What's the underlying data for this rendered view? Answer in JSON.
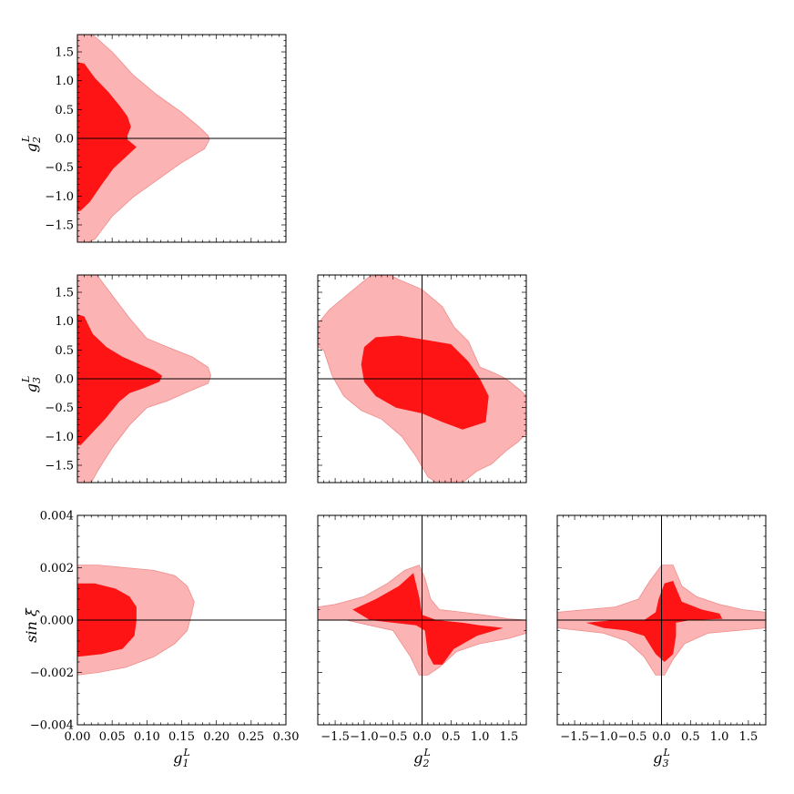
{
  "chart_data": [
    {
      "type": "contour",
      "id": "g1-g2",
      "xlabel": "",
      "ylabel": "g_2^L",
      "xlim": [
        0.0,
        0.3
      ],
      "ylim": [
        -1.8,
        1.8
      ],
      "xticks": [
        0.0,
        0.05,
        0.1,
        0.15,
        0.2,
        0.25,
        0.3
      ],
      "yticks": [
        -1.5,
        -1.0,
        -0.5,
        0.0,
        0.5,
        1.0,
        1.5
      ],
      "xtick_labels": [],
      "ytick_labels": [
        "−1.5",
        "−1.0",
        "−0.5",
        "0.0",
        "0.5",
        "1.0",
        "1.5"
      ],
      "reference_lines": {
        "x": null,
        "y": 0
      },
      "outer_region": [
        [
          0,
          1.8
        ],
        [
          0.022,
          1.8
        ],
        [
          0.05,
          1.5
        ],
        [
          0.08,
          1.1
        ],
        [
          0.115,
          0.75
        ],
        [
          0.15,
          0.45
        ],
        [
          0.175,
          0.2
        ],
        [
          0.188,
          0.05
        ],
        [
          0.19,
          -0.02
        ],
        [
          0.183,
          -0.18
        ],
        [
          0.15,
          -0.42
        ],
        [
          0.115,
          -0.72
        ],
        [
          0.08,
          -1.02
        ],
        [
          0.05,
          -1.35
        ],
        [
          0.025,
          -1.75
        ],
        [
          0.015,
          -1.8
        ],
        [
          0,
          -1.8
        ]
      ],
      "inner_region": [
        [
          0,
          1.32
        ],
        [
          0.01,
          1.3
        ],
        [
          0.025,
          1.05
        ],
        [
          0.045,
          0.8
        ],
        [
          0.062,
          0.55
        ],
        [
          0.072,
          0.38
        ],
        [
          0.077,
          0.2
        ],
        [
          0.072,
          0.05
        ],
        [
          0.072,
          -0.02
        ],
        [
          0.085,
          -0.15
        ],
        [
          0.07,
          -0.32
        ],
        [
          0.052,
          -0.52
        ],
        [
          0.035,
          -0.8
        ],
        [
          0.018,
          -1.1
        ],
        [
          0.005,
          -1.25
        ],
        [
          0,
          -1.27
        ]
      ]
    },
    {
      "type": "contour",
      "id": "g1-g3",
      "xlabel": "",
      "ylabel": "g_3^L",
      "xlim": [
        0.0,
        0.3
      ],
      "ylim": [
        -1.8,
        1.8
      ],
      "xticks": [
        0.0,
        0.05,
        0.1,
        0.15,
        0.2,
        0.25,
        0.3
      ],
      "yticks": [
        -1.5,
        -1.0,
        -0.5,
        0.0,
        0.5,
        1.0,
        1.5
      ],
      "xtick_labels": [],
      "ytick_labels": [
        "−1.5",
        "−1.0",
        "−0.5",
        "0.0",
        "0.5",
        "1.0",
        "1.5"
      ],
      "reference_lines": {
        "x": null,
        "y": 0
      },
      "outer_region": [
        [
          0,
          1.8
        ],
        [
          0.028,
          1.8
        ],
        [
          0.05,
          1.45
        ],
        [
          0.075,
          1.05
        ],
        [
          0.1,
          0.7
        ],
        [
          0.13,
          0.55
        ],
        [
          0.165,
          0.38
        ],
        [
          0.188,
          0.2
        ],
        [
          0.192,
          0.05
        ],
        [
          0.188,
          -0.08
        ],
        [
          0.16,
          -0.22
        ],
        [
          0.13,
          -0.38
        ],
        [
          0.1,
          -0.5
        ],
        [
          0.075,
          -0.8
        ],
        [
          0.05,
          -1.2
        ],
        [
          0.03,
          -1.58
        ],
        [
          0.02,
          -1.8
        ],
        [
          0,
          -1.8
        ]
      ],
      "inner_region": [
        [
          0,
          1.12
        ],
        [
          0.01,
          1.08
        ],
        [
          0.022,
          0.78
        ],
        [
          0.042,
          0.55
        ],
        [
          0.065,
          0.38
        ],
        [
          0.09,
          0.25
        ],
        [
          0.11,
          0.15
        ],
        [
          0.122,
          0.05
        ],
        [
          0.118,
          -0.05
        ],
        [
          0.098,
          -0.15
        ],
        [
          0.075,
          -0.25
        ],
        [
          0.06,
          -0.4
        ],
        [
          0.04,
          -0.7
        ],
        [
          0.018,
          -0.98
        ],
        [
          0.005,
          -1.15
        ],
        [
          0,
          -1.15
        ]
      ]
    },
    {
      "type": "contour",
      "id": "g2-g3",
      "xlabel": "",
      "ylabel": "",
      "xlim": [
        -1.8,
        1.8
      ],
      "ylim": [
        -1.8,
        1.8
      ],
      "xticks": [
        -1.5,
        -1.0,
        -0.5,
        0.0,
        0.5,
        1.0,
        1.5
      ],
      "yticks": [
        -1.5,
        -1.0,
        -0.5,
        0.0,
        0.5,
        1.0,
        1.5
      ],
      "xtick_labels": [],
      "ytick_labels": [],
      "reference_lines": {
        "x": 0,
        "y": 0
      },
      "outer_region": [
        [
          -1.8,
          0.95
        ],
        [
          -1.8,
          0.55
        ],
        [
          -1.7,
          0.5
        ],
        [
          -1.55,
          0.05
        ],
        [
          -1.35,
          -0.3
        ],
        [
          -1.05,
          -0.55
        ],
        [
          -0.7,
          -0.7
        ],
        [
          -0.35,
          -1.0
        ],
        [
          -0.1,
          -1.35
        ],
        [
          0.1,
          -1.7
        ],
        [
          0.25,
          -1.8
        ],
        [
          0.7,
          -1.8
        ],
        [
          0.95,
          -1.6
        ],
        [
          1.2,
          -1.48
        ],
        [
          1.45,
          -1.25
        ],
        [
          1.65,
          -1.1
        ],
        [
          1.8,
          -0.95
        ],
        [
          1.8,
          -0.3
        ],
        [
          1.7,
          -0.2
        ],
        [
          1.45,
          0.0
        ],
        [
          1.25,
          0.1
        ],
        [
          1.0,
          0.2
        ],
        [
          0.8,
          0.65
        ],
        [
          0.55,
          0.9
        ],
        [
          0.35,
          1.25
        ],
        [
          0.0,
          1.55
        ],
        [
          -0.4,
          1.72
        ],
        [
          -0.55,
          1.8
        ],
        [
          -0.9,
          1.78
        ],
        [
          -1.3,
          1.45
        ],
        [
          -1.6,
          1.2
        ]
      ],
      "inner_region": [
        [
          -1.0,
          0.55
        ],
        [
          -0.8,
          0.72
        ],
        [
          -0.4,
          0.75
        ],
        [
          0.2,
          0.65
        ],
        [
          0.5,
          0.6
        ],
        [
          0.8,
          0.3
        ],
        [
          1.0,
          0.0
        ],
        [
          1.15,
          -0.3
        ],
        [
          1.1,
          -0.75
        ],
        [
          0.7,
          -0.88
        ],
        [
          0.35,
          -0.75
        ],
        [
          0.0,
          -0.6
        ],
        [
          -0.45,
          -0.5
        ],
        [
          -0.8,
          -0.3
        ],
        [
          -1.0,
          -0.05
        ],
        [
          -1.05,
          0.25
        ]
      ]
    },
    {
      "type": "contour",
      "id": "g1-sinxi",
      "xlabel": "g_1^L",
      "ylabel": "sin ξ",
      "xlim": [
        0.0,
        0.3
      ],
      "ylim": [
        -0.004,
        0.004
      ],
      "xticks": [
        0.0,
        0.05,
        0.1,
        0.15,
        0.2,
        0.25,
        0.3
      ],
      "yticks": [
        -0.004,
        -0.002,
        0.0,
        0.002,
        0.004
      ],
      "xtick_labels": [
        "0.00",
        "0.05",
        "0.10",
        "0.15",
        "0.20",
        "0.25",
        "0.30"
      ],
      "ytick_labels": [
        "−0.004",
        "−0.002",
        "0.000",
        "0.002",
        "0.004"
      ],
      "reference_lines": {
        "x": null,
        "y": 0
      },
      "outer_region": [
        [
          0,
          0.0021
        ],
        [
          0.03,
          0.0021
        ],
        [
          0.07,
          0.002
        ],
        [
          0.11,
          0.0019
        ],
        [
          0.14,
          0.0017
        ],
        [
          0.158,
          0.0013
        ],
        [
          0.168,
          0.0007
        ],
        [
          0.164,
          0.0002
        ],
        [
          0.158,
          -0.0004
        ],
        [
          0.14,
          -0.0009
        ],
        [
          0.11,
          -0.0014
        ],
        [
          0.07,
          -0.0018
        ],
        [
          0.03,
          -0.002
        ],
        [
          0,
          -0.0021
        ]
      ],
      "inner_region": [
        [
          0,
          0.0014
        ],
        [
          0.025,
          0.0014
        ],
        [
          0.055,
          0.0012
        ],
        [
          0.075,
          0.0009
        ],
        [
          0.085,
          0.0005
        ],
        [
          0.085,
          0.0
        ],
        [
          0.082,
          -0.0006
        ],
        [
          0.065,
          -0.0011
        ],
        [
          0.035,
          -0.0013
        ],
        [
          0,
          -0.0014
        ]
      ]
    },
    {
      "type": "contour",
      "id": "g2-sinxi",
      "xlabel": "g_2^L",
      "ylabel": "",
      "xlim": [
        -1.8,
        1.8
      ],
      "ylim": [
        -0.004,
        0.004
      ],
      "xticks": [
        -1.5,
        -1.0,
        -0.5,
        0.0,
        0.5,
        1.0,
        1.5
      ],
      "yticks": [
        -0.004,
        -0.002,
        0.0,
        0.002,
        0.004
      ],
      "xtick_labels": [
        "−1.5",
        "−1.0",
        "−0.5",
        "0.0",
        "0.5",
        "1.0",
        "1.5"
      ],
      "ytick_labels": [],
      "reference_lines": {
        "x": 0,
        "y": 0
      },
      "outer_region": [
        [
          -1.8,
          0.0005
        ],
        [
          -1.5,
          0.0006
        ],
        [
          -1.0,
          0.0009
        ],
        [
          -0.6,
          0.0014
        ],
        [
          -0.3,
          0.0019
        ],
        [
          -0.05,
          0.0021
        ],
        [
          0.05,
          0.0016
        ],
        [
          0.15,
          0.0008
        ],
        [
          0.3,
          0.0004
        ],
        [
          0.7,
          0.0003
        ],
        [
          1.2,
          0.00015
        ],
        [
          1.5,
          5e-05
        ],
        [
          1.8,
          0.0
        ],
        [
          1.8,
          -0.0005
        ],
        [
          1.5,
          -0.0007
        ],
        [
          1.0,
          -0.0009
        ],
        [
          0.6,
          -0.0012
        ],
        [
          0.3,
          -0.0018
        ],
        [
          0.1,
          -0.0021
        ],
        [
          -0.05,
          -0.0021
        ],
        [
          -0.2,
          -0.0014
        ],
        [
          -0.5,
          -0.0004
        ],
        [
          -0.9,
          -0.0002
        ],
        [
          -1.3,
          0.0
        ],
        [
          -1.8,
          0.0
        ]
      ],
      "inner_region": [
        [
          -1.2,
          0.0004
        ],
        [
          -0.8,
          0.0008
        ],
        [
          -0.4,
          0.0013
        ],
        [
          -0.15,
          0.0018
        ],
        [
          -0.05,
          0.0009
        ],
        [
          0.0,
          0.0002
        ],
        [
          0.25,
          0.0
        ],
        [
          0.7,
          -0.0001
        ],
        [
          1.0,
          -0.0002
        ],
        [
          1.4,
          -0.0003
        ],
        [
          0.95,
          -0.0006
        ],
        [
          0.55,
          -0.0011
        ],
        [
          0.35,
          -0.0017
        ],
        [
          0.2,
          -0.0017
        ],
        [
          0.1,
          -0.0013
        ],
        [
          0.05,
          -0.0004
        ],
        [
          -0.1,
          -0.0002
        ],
        [
          -0.5,
          -0.0001
        ],
        [
          -0.9,
          0.0
        ]
      ]
    },
    {
      "type": "contour",
      "id": "g3-sinxi",
      "xlabel": "g_3^L",
      "ylabel": "",
      "xlim": [
        -1.8,
        1.8
      ],
      "ylim": [
        -0.004,
        0.004
      ],
      "xticks": [
        -1.5,
        -1.0,
        -0.5,
        0.0,
        0.5,
        1.0,
        1.5
      ],
      "yticks": [
        -0.004,
        -0.002,
        0.0,
        0.002,
        0.004
      ],
      "xtick_labels": [
        "−1.5",
        "−1.0",
        "−0.5",
        "0.0",
        "0.5",
        "1.0",
        "1.5"
      ],
      "ytick_labels": [],
      "reference_lines": {
        "x": 0,
        "y": 0
      },
      "outer_region": [
        [
          -1.8,
          0.0003
        ],
        [
          -1.3,
          0.0004
        ],
        [
          -0.8,
          0.0005
        ],
        [
          -0.4,
          0.0008
        ],
        [
          -0.2,
          0.0015
        ],
        [
          0.0,
          0.0021
        ],
        [
          0.2,
          0.0021
        ],
        [
          0.35,
          0.0013
        ],
        [
          0.6,
          0.0009
        ],
        [
          1.0,
          0.0006
        ],
        [
          1.4,
          0.0004
        ],
        [
          1.8,
          0.0003
        ],
        [
          1.8,
          -0.0003
        ],
        [
          1.3,
          -0.0004
        ],
        [
          0.8,
          -0.0005
        ],
        [
          0.4,
          -0.0009
        ],
        [
          0.2,
          -0.0015
        ],
        [
          0.05,
          -0.0021
        ],
        [
          -0.1,
          -0.0021
        ],
        [
          -0.3,
          -0.0014
        ],
        [
          -0.6,
          -0.0008
        ],
        [
          -1.0,
          -0.0005
        ],
        [
          -1.4,
          -0.0004
        ],
        [
          -1.8,
          -0.0003
        ]
      ],
      "inner_region": [
        [
          -1.3,
          -0.0001
        ],
        [
          -0.8,
          0.0
        ],
        [
          -0.3,
          0.0
        ],
        [
          -0.1,
          0.0003
        ],
        [
          -0.05,
          0.0008
        ],
        [
          0.05,
          0.0014
        ],
        [
          0.2,
          0.0015
        ],
        [
          0.35,
          0.0007
        ],
        [
          0.7,
          0.0004
        ],
        [
          1.0,
          0.00025
        ],
        [
          1.05,
          5e-05
        ],
        [
          0.5,
          0.0
        ],
        [
          0.25,
          -0.0001
        ],
        [
          0.25,
          -0.0006
        ],
        [
          0.2,
          -0.0013
        ],
        [
          0.05,
          -0.0016
        ],
        [
          -0.1,
          -0.0013
        ],
        [
          -0.3,
          -0.0006
        ],
        [
          -0.6,
          -0.0004
        ],
        [
          -1.0,
          -0.0003
        ]
      ]
    }
  ],
  "colors": {
    "outer_region": "#fbb3b3",
    "outer_region_edge": "#f08c8c",
    "inner_region": "#fe1414",
    "axes": "#000000"
  }
}
